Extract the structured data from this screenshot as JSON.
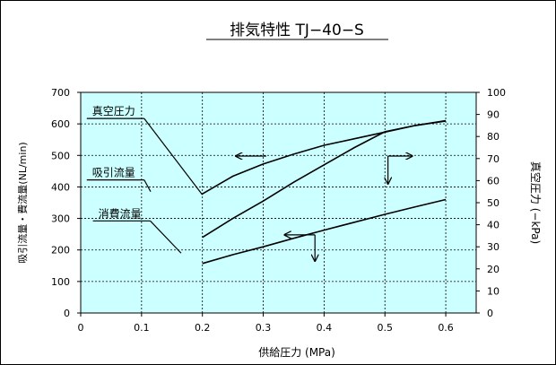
{
  "chart_data": {
    "type": "line",
    "title": "排気特性 TJ−40−S",
    "xlabel": "供給圧力 (MPa)",
    "ylabel_left": "吸引流量・費流量(NL/min)",
    "ylabel_right": "真空圧力 (−kPa)",
    "xlim": [
      0,
      0.65
    ],
    "ylim_left": [
      0,
      700
    ],
    "ylim_right": [
      0,
      100
    ],
    "x_ticks": [
      "0",
      "0.1",
      "0.2",
      "0.3",
      "0.4",
      "0.5",
      "0.6"
    ],
    "y_left_ticks": [
      "0",
      "100",
      "200",
      "300",
      "400",
      "500",
      "600",
      "700"
    ],
    "y_right_ticks": [
      "0",
      "10",
      "20",
      "30",
      "40",
      "50",
      "60",
      "70",
      "80",
      "90",
      "100"
    ],
    "grid": true,
    "colors": {
      "plot_bg": "#ccffff",
      "line": "#000000"
    },
    "series": [
      {
        "name": "真空圧力",
        "axis": "right",
        "x": [
          0.2,
          0.25,
          0.3,
          0.35,
          0.4,
          0.45,
          0.5,
          0.55,
          0.6
        ],
        "values": [
          54,
          62,
          67.5,
          72,
          76,
          79,
          82,
          85,
          87
        ]
      },
      {
        "name": "吸引流量",
        "axis": "left",
        "x": [
          0.2,
          0.25,
          0.3,
          0.35,
          0.4,
          0.45,
          0.5,
          0.55,
          0.6
        ],
        "values": [
          240,
          300,
          355,
          415,
          470,
          525,
          575,
          595,
          610
        ]
      },
      {
        "name": "消費流量",
        "axis": "left",
        "x": [
          0.2,
          0.25,
          0.3,
          0.35,
          0.4,
          0.45,
          0.5,
          0.55,
          0.6
        ],
        "values": [
          157,
          185,
          210,
          237,
          263,
          288,
          313,
          337,
          360
        ]
      }
    ],
    "annotations": [
      {
        "text": "真空圧力",
        "label_x": 0.01,
        "label_y": 620,
        "tip_x": 0.2,
        "tip_y": 375
      },
      {
        "text": "吸引流量",
        "label_x": 0.01,
        "label_y": 425,
        "tip_x": 0.115,
        "tip_y": 385
      },
      {
        "text": "消費流量",
        "label_x": 0.02,
        "label_y": 295,
        "tip_x": 0.165,
        "tip_y": 190
      }
    ],
    "arrows": [
      {
        "x1": 0.305,
        "y1": 498,
        "x2": 0.255,
        "y2": 498,
        "axis": "right-pointing-left"
      },
      {
        "x1": 0.505,
        "y1": 498,
        "x2": 0.545,
        "y2": 498,
        "axis": "right-pointing-right"
      },
      {
        "x1": 0.505,
        "y1": 498,
        "x2": 0.505,
        "y2": 410,
        "axis": "down"
      },
      {
        "x1": 0.385,
        "y1": 248,
        "x2": 0.335,
        "y2": 248,
        "axis": "left"
      },
      {
        "x1": 0.385,
        "y1": 248,
        "x2": 0.385,
        "y2": 165,
        "axis": "down"
      }
    ]
  }
}
